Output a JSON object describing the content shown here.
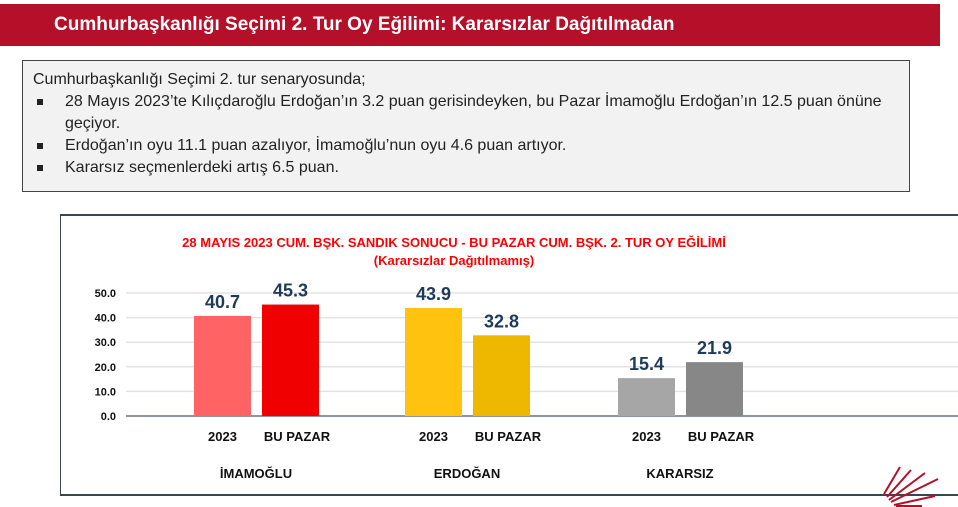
{
  "header": {
    "title": "Cumhurbaşkanlığı Seçimi 2. Tur Oy Eğilimi: Kararsızlar Dağıtılmadan"
  },
  "summary": {
    "intro": "Cumhurbaşkanlığı Seçimi 2. tur senaryosunda;",
    "bullets": [
      "28 Mayıs 2023’te Kılıçdaroğlu Erdoğan’ın 3.2 puan gerisindeyken, bu Pazar İmamoğlu Erdoğan’ın 12.5 puan önüne geçiyor.",
      "Erdoğan’ın oyu 11.1 puan azalıyor, İmamoğlu’nun oyu 4.6 puan artıyor.",
      "Kararsız seçmenlerdeki artış 6.5 puan."
    ]
  },
  "chart_data": {
    "type": "bar",
    "title": "28 MAYIS 2023 CUM. BŞK. SANDIK SONUCU - BU PAZAR CUM. BŞK. 2. TUR OY EĞİLİMİ",
    "subtitle": "(Kararsızlar Dağıtılmamış)",
    "groups": [
      {
        "name": "İMAMOĞLU",
        "bars": [
          {
            "label": "2023",
            "value": 40.7,
            "color": "#ff6363"
          },
          {
            "label": "BU PAZAR",
            "value": 45.3,
            "color": "#f00000"
          }
        ]
      },
      {
        "name": "ERDOĞAN",
        "bars": [
          {
            "label": "2023",
            "value": 43.9,
            "color": "#ffc30f"
          },
          {
            "label": "BU PAZAR",
            "value": 32.8,
            "color": "#efb800"
          }
        ]
      },
      {
        "name": "KARARSIZ",
        "bars": [
          {
            "label": "2023",
            "value": 15.4,
            "color": "#a6a6a6"
          },
          {
            "label": "BU PAZAR",
            "value": 21.9,
            "color": "#878787"
          }
        ]
      }
    ],
    "yticks": [
      "0.0",
      "10.0",
      "20.0",
      "30.0",
      "40.0",
      "50.0"
    ],
    "ylim": [
      0,
      50
    ],
    "grid": true,
    "title_color": "#ff0000",
    "value_label_color": "#1f3b5a"
  }
}
